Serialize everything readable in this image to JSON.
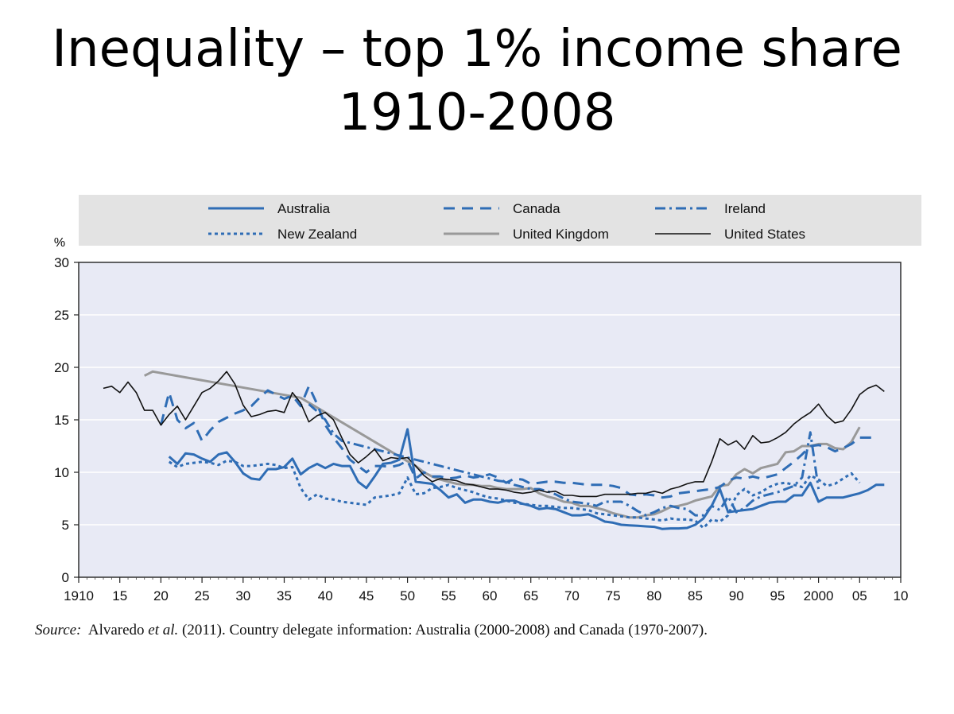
{
  "slide": {
    "title_line1": "Inequality – top 1% income share",
    "title_line2": "1910-2008"
  },
  "source": {
    "label": "Source:",
    "authors": "Alvaredo",
    "etal": "et al.",
    "rest": "(2011). Country delegate information: Australia (2000-2008) and Canada (1970-2007)."
  },
  "chart_data": {
    "type": "line",
    "title": "",
    "ylabel": "%",
    "xlabel": "",
    "xlim": [
      1910,
      2010
    ],
    "ylim": [
      0,
      30
    ],
    "yticks": [
      0,
      5,
      10,
      15,
      20,
      25,
      30
    ],
    "xticks": [
      {
        "value": 1910,
        "label": "1910"
      },
      {
        "value": 1915,
        "label": "15"
      },
      {
        "value": 1920,
        "label": "20"
      },
      {
        "value": 1925,
        "label": "25"
      },
      {
        "value": 1930,
        "label": "30"
      },
      {
        "value": 1935,
        "label": "35"
      },
      {
        "value": 1940,
        "label": "40"
      },
      {
        "value": 1945,
        "label": "45"
      },
      {
        "value": 1950,
        "label": "50"
      },
      {
        "value": 1955,
        "label": "55"
      },
      {
        "value": 1960,
        "label": "60"
      },
      {
        "value": 1965,
        "label": "65"
      },
      {
        "value": 1970,
        "label": "70"
      },
      {
        "value": 1975,
        "label": "75"
      },
      {
        "value": 1980,
        "label": "80"
      },
      {
        "value": 1985,
        "label": "85"
      },
      {
        "value": 1990,
        "label": "90"
      },
      {
        "value": 1995,
        "label": "95"
      },
      {
        "value": 2000,
        "label": "2000"
      },
      {
        "value": 2005,
        "label": "05"
      },
      {
        "value": 2010,
        "label": "10"
      }
    ],
    "grid": true,
    "legend_position": "top",
    "colors": {
      "plot_bg": "#e8eaf5",
      "legend_bg": "#e3e3e3",
      "grid": "#ffffff",
      "blue": "#2f6db5",
      "grey": "#999999",
      "black": "#111111"
    },
    "series": [
      {
        "name": "Australia",
        "color": "#2f6db5",
        "dash": "solid",
        "width": 3,
        "x": [
          1921,
          1922,
          1923,
          1924,
          1925,
          1926,
          1927,
          1928,
          1929,
          1930,
          1931,
          1932,
          1933,
          1934,
          1935,
          1936,
          1937,
          1938,
          1939,
          1940,
          1941,
          1942,
          1943,
          1944,
          1945,
          1946,
          1947,
          1948,
          1949,
          1950,
          1951,
          1952,
          1953,
          1954,
          1955,
          1956,
          1957,
          1958,
          1959,
          1960,
          1961,
          1962,
          1963,
          1964,
          1965,
          1966,
          1967,
          1968,
          1969,
          1970,
          1971,
          1972,
          1973,
          1974,
          1975,
          1976,
          1977,
          1978,
          1979,
          1980,
          1981,
          1982,
          1983,
          1984,
          1985,
          1986,
          1987,
          1988,
          1989,
          1990,
          1991,
          1992,
          1993,
          1994,
          1995,
          1996,
          1997,
          1998,
          1999,
          2000,
          2001,
          2002,
          2003,
          2004,
          2005,
          2006,
          2007,
          2008
        ],
        "y": [
          11.5,
          10.8,
          11.8,
          11.7,
          11.3,
          11.0,
          11.7,
          11.9,
          11.0,
          9.9,
          9.4,
          9.3,
          10.3,
          10.3,
          10.5,
          11.3,
          9.8,
          10.4,
          10.8,
          10.4,
          10.8,
          10.6,
          10.6,
          9.1,
          8.5,
          9.6,
          10.8,
          10.9,
          11.2,
          14.1,
          9.1,
          9.0,
          8.9,
          8.3,
          7.6,
          7.9,
          7.1,
          7.4,
          7.4,
          7.2,
          7.1,
          7.3,
          7.3,
          7.0,
          6.8,
          6.5,
          6.6,
          6.5,
          6.2,
          5.9,
          5.9,
          6.0,
          5.7,
          5.3,
          5.2,
          5.0,
          4.95,
          4.9,
          4.85,
          4.8,
          4.6,
          4.65,
          4.65,
          4.7,
          5.0,
          5.6,
          6.8,
          8.4,
          6.2,
          6.3,
          6.4,
          6.5,
          6.8,
          7.1,
          7.2,
          7.2,
          7.8,
          7.8,
          9.0,
          7.2,
          7.6,
          7.6,
          7.6,
          7.8,
          8.0,
          8.3,
          8.8,
          8.8
        ]
      },
      {
        "name": "Canada",
        "color": "#2f6db5",
        "dash": "long",
        "width": 3,
        "x": [
          1920,
          1921,
          1922,
          1923,
          1924,
          1925,
          1926,
          1927,
          1928,
          1929,
          1930,
          1931,
          1932,
          1933,
          1934,
          1935,
          1936,
          1937,
          1938,
          1939,
          1940,
          1941,
          1942,
          1943,
          1944,
          1945,
          1946,
          1947,
          1948,
          1949,
          1950,
          1951,
          1952,
          1953,
          1954,
          1955,
          1956,
          1957,
          1958,
          1959,
          1960,
          1961,
          1962,
          1963,
          1964,
          1965,
          1966,
          1967,
          1968,
          1969,
          1970,
          1971,
          1972,
          1973,
          1974,
          1975,
          1976,
          1977,
          1978,
          1979,
          1980,
          1981,
          1982,
          1983,
          1984,
          1985,
          1986,
          1987,
          1988,
          1989,
          1990,
          1991,
          1992,
          1993,
          1994,
          1995,
          1996,
          1997,
          1998,
          1999,
          2000,
          2001,
          2002,
          2003,
          2004,
          2005,
          2006,
          2007
        ],
        "y": [
          14.5,
          17.6,
          15.0,
          14.2,
          14.7,
          13.0,
          14.0,
          14.8,
          15.2,
          15.6,
          15.9,
          16.3,
          17.1,
          17.8,
          17.4,
          17.0,
          17.3,
          16.3,
          18.2,
          16.5,
          14.5,
          13.3,
          12.3,
          11.2,
          10.6,
          10.0,
          10.6,
          10.6,
          10.5,
          10.7,
          11.1,
          9.4,
          10.0,
          9.6,
          9.6,
          9.4,
          9.5,
          9.7,
          9.5,
          9.6,
          9.8,
          9.5,
          9.0,
          9.4,
          9.3,
          8.9,
          9.0,
          9.1,
          9.1,
          9.0,
          9.0,
          8.9,
          8.8,
          8.8,
          8.8,
          8.7,
          8.5,
          7.9,
          7.8,
          7.9,
          7.8,
          7.6,
          7.7,
          8.0,
          8.1,
          8.2,
          8.3,
          8.4,
          8.6,
          9.2,
          9.5,
          9.4,
          9.6,
          9.4,
          9.6,
          9.8,
          10.4,
          11.0,
          11.7,
          12.5,
          12.6,
          12.4,
          12.0,
          12.3,
          12.7,
          13.3,
          13.3,
          13.3
        ]
      },
      {
        "name": "Ireland",
        "color": "#2f6db5",
        "dash": "dashdot",
        "width": 3,
        "x": [
          1938,
          1939,
          1940,
          1941,
          1942,
          1943,
          1944,
          1945,
          1946,
          1947,
          1948,
          1949,
          1950,
          1951,
          1952,
          1953,
          1954,
          1955,
          1956,
          1957,
          1958,
          1959,
          1960,
          1961,
          1962,
          1963,
          1964,
          1965,
          1966,
          1967,
          1968,
          1969,
          1970,
          1971,
          1972,
          1973,
          1974,
          1975,
          1976,
          1977,
          1978,
          1979,
          1980,
          1981,
          1982,
          1983,
          1984,
          1985,
          1986,
          1987,
          1988,
          1989,
          1990,
          1991,
          1992,
          1993,
          1994,
          1995,
          1996,
          1997,
          1998,
          1999,
          2000
        ],
        "y": [
          16.5,
          15.8,
          15.0,
          13.7,
          13.0,
          12.8,
          12.6,
          12.4,
          12.2,
          12.0,
          11.8,
          11.6,
          11.4,
          11.2,
          11.0,
          10.8,
          10.6,
          10.4,
          10.2,
          10.0,
          9.8,
          9.6,
          9.4,
          9.2,
          9.1,
          8.8,
          8.6,
          8.4,
          8.4,
          8.2,
          7.9,
          7.5,
          7.2,
          7.1,
          7.0,
          6.8,
          7.2,
          7.2,
          7.2,
          6.8,
          6.3,
          5.9,
          6.2,
          6.6,
          6.8,
          6.6,
          6.5,
          5.9,
          5.9,
          6.8,
          6.4,
          7.7,
          6.2,
          6.6,
          7.3,
          7.7,
          7.9,
          8.1,
          8.4,
          8.7,
          9.5,
          13.8,
          8.4
        ]
      },
      {
        "name": "New Zealand",
        "color": "#2f6db5",
        "dash": "dotted",
        "width": 3,
        "x": [
          1921,
          1922,
          1923,
          1924,
          1925,
          1926,
          1927,
          1928,
          1929,
          1930,
          1931,
          1932,
          1933,
          1934,
          1935,
          1936,
          1937,
          1938,
          1939,
          1940,
          1941,
          1942,
          1943,
          1944,
          1945,
          1946,
          1947,
          1948,
          1949,
          1950,
          1951,
          1952,
          1953,
          1954,
          1955,
          1956,
          1957,
          1958,
          1959,
          1960,
          1961,
          1962,
          1963,
          1964,
          1965,
          1966,
          1967,
          1968,
          1969,
          1970,
          1971,
          1972,
          1973,
          1974,
          1975,
          1976,
          1977,
          1978,
          1979,
          1980,
          1981,
          1982,
          1983,
          1984,
          1985,
          1986,
          1987,
          1988,
          1989,
          1990,
          1991,
          1992,
          1993,
          1994,
          1995,
          1996,
          1997,
          1998,
          1999,
          2000,
          2001,
          2002,
          2003,
          2004,
          2005
        ],
        "y": [
          11.0,
          10.5,
          10.8,
          10.9,
          11.0,
          10.9,
          10.7,
          11.1,
          11.0,
          10.6,
          10.6,
          10.7,
          10.8,
          10.7,
          10.4,
          10.5,
          8.5,
          7.4,
          7.9,
          7.5,
          7.4,
          7.2,
          7.1,
          7.0,
          6.9,
          7.6,
          7.7,
          7.8,
          8.0,
          9.5,
          7.9,
          8.0,
          8.5,
          8.6,
          8.8,
          8.5,
          8.3,
          8.1,
          7.8,
          7.6,
          7.5,
          7.3,
          7.1,
          7.0,
          6.9,
          6.8,
          6.8,
          6.7,
          6.6,
          6.6,
          6.5,
          6.4,
          6.1,
          6.0,
          5.9,
          5.8,
          5.7,
          5.7,
          5.6,
          5.5,
          5.4,
          5.6,
          5.5,
          5.5,
          5.4,
          4.7,
          5.5,
          5.3,
          5.9,
          7.8,
          8.4,
          7.8,
          8.1,
          8.6,
          8.9,
          9.0,
          8.8,
          8.6,
          9.7,
          9.3,
          8.7,
          8.9,
          9.4,
          9.9,
          9.0
        ]
      },
      {
        "name": "United Kingdom",
        "color": "#999999",
        "dash": "solid",
        "width": 3,
        "x": [
          1918,
          1919,
          1937,
          1949,
          1951,
          1952,
          1953,
          1954,
          1955,
          1956,
          1957,
          1958,
          1959,
          1960,
          1961,
          1962,
          1963,
          1964,
          1965,
          1966,
          1967,
          1968,
          1969,
          1970,
          1971,
          1972,
          1973,
          1974,
          1975,
          1976,
          1977,
          1978,
          1979,
          1980,
          1981,
          1982,
          1983,
          1984,
          1985,
          1986,
          1987,
          1988,
          1989,
          1990,
          1991,
          1992,
          1993,
          1994,
          1995,
          1996,
          1997,
          1998,
          1999,
          2000,
          2001,
          2002,
          2003,
          2004,
          2005
        ],
        "y": [
          19.2,
          19.6,
          17.1,
          11.5,
          10.6,
          10.0,
          9.6,
          9.3,
          9.1,
          8.9,
          8.8,
          8.8,
          8.7,
          8.7,
          8.5,
          8.4,
          8.4,
          8.4,
          8.5,
          8.0,
          7.7,
          7.5,
          7.2,
          7.1,
          6.8,
          6.8,
          6.6,
          6.4,
          6.1,
          5.9,
          5.7,
          5.7,
          5.9,
          6.0,
          6.3,
          6.7,
          6.8,
          7.0,
          7.3,
          7.5,
          7.7,
          8.7,
          8.8,
          9.8,
          10.3,
          9.9,
          10.4,
          10.6,
          10.8,
          11.9,
          12.0,
          12.5,
          12.5,
          12.7,
          12.7,
          12.3,
          12.2,
          12.9,
          14.3
        ]
      },
      {
        "name": "United States",
        "color": "#111111",
        "dash": "solid",
        "width": 1.6,
        "x": [
          1913,
          1914,
          1915,
          1916,
          1917,
          1918,
          1919,
          1920,
          1921,
          1922,
          1923,
          1924,
          1925,
          1926,
          1927,
          1928,
          1929,
          1930,
          1931,
          1932,
          1933,
          1934,
          1935,
          1936,
          1937,
          1938,
          1939,
          1940,
          1941,
          1942,
          1943,
          1944,
          1945,
          1946,
          1947,
          1948,
          1949,
          1950,
          1951,
          1952,
          1953,
          1954,
          1955,
          1956,
          1957,
          1958,
          1959,
          1960,
          1961,
          1962,
          1963,
          1964,
          1965,
          1966,
          1967,
          1968,
          1969,
          1970,
          1971,
          1972,
          1973,
          1974,
          1975,
          1976,
          1977,
          1978,
          1979,
          1980,
          1981,
          1982,
          1983,
          1984,
          1985,
          1986,
          1987,
          1988,
          1989,
          1990,
          1991,
          1992,
          1993,
          1994,
          1995,
          1996,
          1997,
          1998,
          1999,
          2000,
          2001,
          2002,
          2003,
          2004,
          2005,
          2006,
          2007,
          2008
        ],
        "y": [
          18.0,
          18.2,
          17.6,
          18.6,
          17.6,
          15.9,
          15.9,
          14.5,
          15.5,
          16.3,
          15.0,
          16.3,
          17.6,
          18.0,
          18.7,
          19.6,
          18.4,
          16.4,
          15.3,
          15.5,
          15.8,
          15.9,
          15.7,
          17.6,
          16.6,
          14.8,
          15.4,
          15.7,
          15.0,
          13.3,
          11.7,
          10.9,
          11.5,
          12.2,
          11.1,
          11.4,
          11.3,
          11.4,
          10.6,
          9.7,
          9.1,
          9.4,
          9.3,
          9.2,
          8.9,
          8.8,
          8.6,
          8.4,
          8.4,
          8.3,
          8.1,
          8.0,
          8.1,
          8.3,
          8.1,
          8.2,
          7.8,
          7.8,
          7.7,
          7.7,
          7.7,
          7.9,
          7.9,
          7.9,
          7.9,
          8.0,
          8.0,
          8.2,
          8.0,
          8.4,
          8.6,
          8.9,
          9.1,
          9.1,
          11.0,
          13.2,
          12.6,
          13.0,
          12.2,
          13.5,
          12.8,
          12.9,
          13.3,
          13.8,
          14.6,
          15.2,
          15.7,
          16.5,
          15.4,
          14.7,
          14.9,
          16.0,
          17.4,
          18.0,
          18.3,
          17.7
        ]
      }
    ]
  }
}
